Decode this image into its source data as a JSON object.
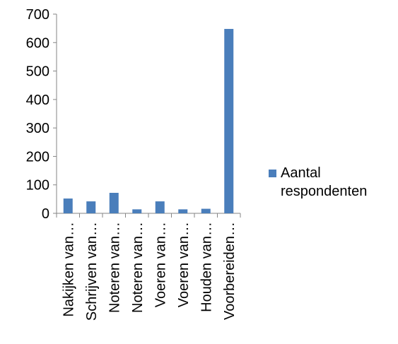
{
  "chart_data": {
    "type": "bar",
    "categories": [
      "Nakijken van…",
      "Schrijven van…",
      "Noteren van…",
      "Noteren van…",
      "Voeren van…",
      "Voeren van…",
      "Houden van…",
      "Voorbereiden…"
    ],
    "series": [
      {
        "name": "Aantal respondenten",
        "values": [
          52,
          42,
          72,
          14,
          42,
          14,
          16,
          648
        ],
        "color": "#4a7ebb"
      }
    ],
    "ylim": [
      0,
      700
    ],
    "yticks": [
      0,
      100,
      200,
      300,
      400,
      500,
      600,
      700
    ],
    "grid": false,
    "legend_position": "right"
  }
}
